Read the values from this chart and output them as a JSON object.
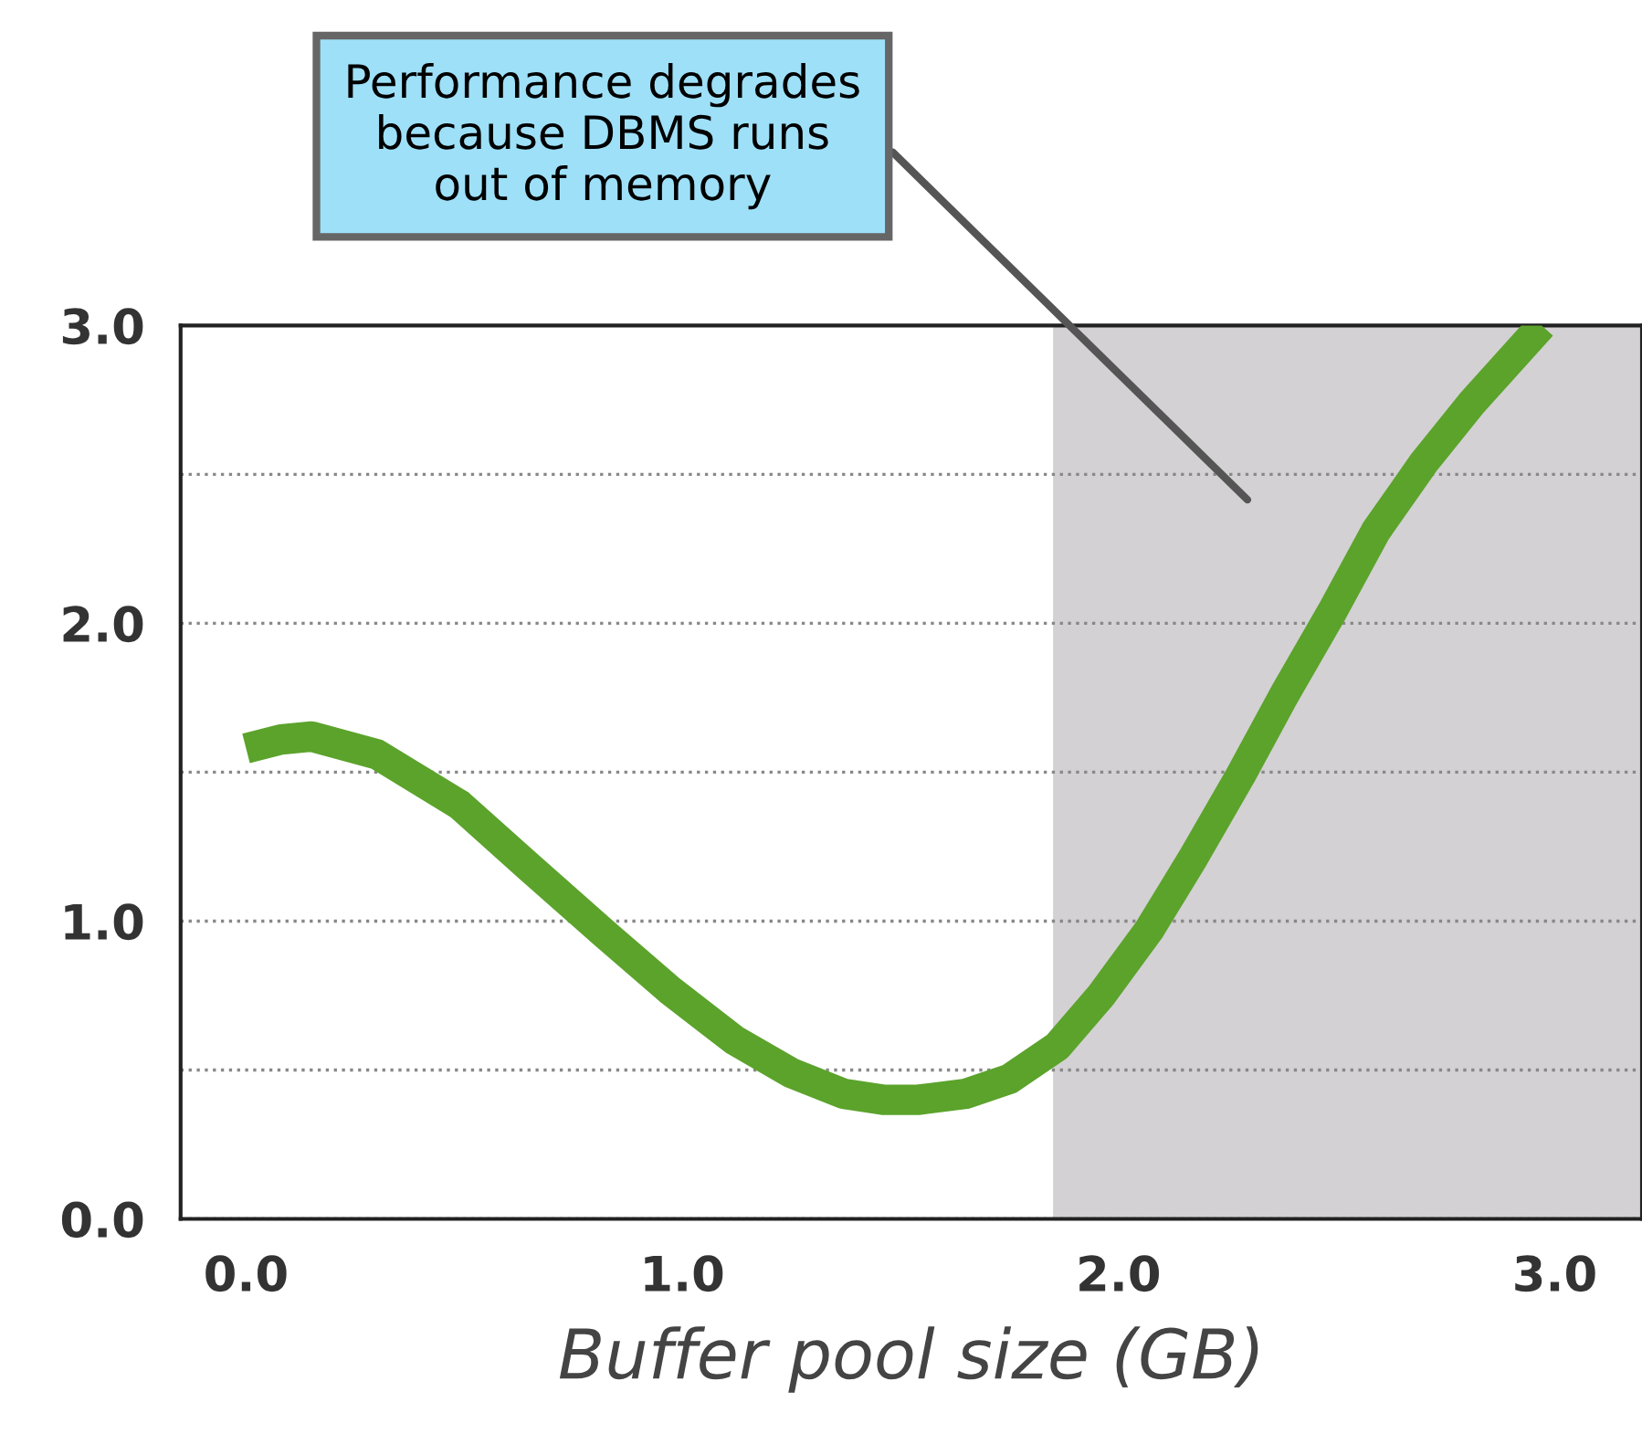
{
  "chart_data": {
    "type": "line",
    "xlabel": "Buffer pool size (GB)",
    "x": [
      0,
      0.08,
      0.15,
      0.3,
      0.49,
      0.65,
      0.82,
      0.97,
      1.12,
      1.25,
      1.37,
      1.46,
      1.54,
      1.65,
      1.75,
      1.86,
      1.96,
      2.07,
      2.17,
      2.28,
      2.38,
      2.49,
      2.59,
      2.7,
      2.81,
      2.97
    ],
    "series": [
      {
        "color": "#5ba32b",
        "values": [
          1.58,
          1.61,
          1.62,
          1.56,
          1.39,
          1.18,
          0.96,
          0.77,
          0.6,
          0.49,
          0.42,
          0.4,
          0.4,
          0.42,
          0.47,
          0.58,
          0.75,
          0.97,
          1.21,
          1.49,
          1.76,
          2.04,
          2.31,
          2.54,
          2.74,
          3.0
        ]
      }
    ],
    "xlim": [
      -0.15,
      3.2
    ],
    "ylim": [
      0,
      3
    ],
    "xticks": [
      {
        "value": 0,
        "label": "0.0"
      },
      {
        "value": 1,
        "label": "1.0"
      },
      {
        "value": 2,
        "label": "2.0"
      },
      {
        "value": 3,
        "label": "3.0"
      }
    ],
    "yticks": [
      {
        "value": 0,
        "label": "0.0"
      },
      {
        "value": 0.5,
        "label": null
      },
      {
        "value": 1,
        "label": "1.0"
      },
      {
        "value": 1.5,
        "label": null
      },
      {
        "value": 2,
        "label": "2.0"
      },
      {
        "value": 2.5,
        "label": null
      },
      {
        "value": 3,
        "label": "3.0"
      }
    ],
    "grid": "y",
    "bands": [
      {
        "axis": "x",
        "from": 1.85,
        "to": 3.2,
        "color": "#d3d1d3"
      }
    ],
    "annotations": [
      "Performance degrades\nbecause DBMS runs\nout of memory"
    ]
  }
}
